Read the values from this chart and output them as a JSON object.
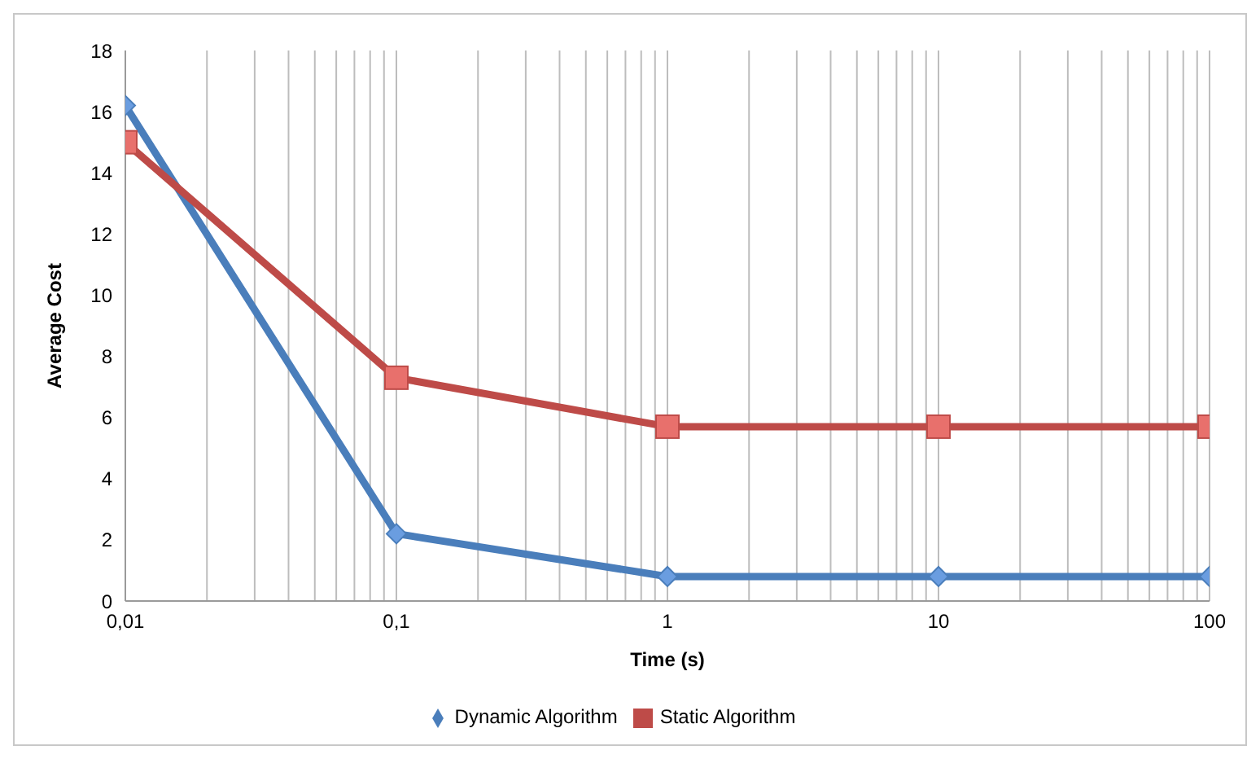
{
  "chart_data": {
    "type": "line",
    "xlabel": "Time (s)",
    "ylabel": "Average Cost",
    "log": "x",
    "x": [
      0.01,
      0.1,
      1,
      10,
      100
    ],
    "series": [
      {
        "name": "Dynamic Algorithm",
        "color": "#4a7ebb",
        "marker": "diamond",
        "values": [
          16.2,
          2.2,
          0.8,
          0.8,
          0.8
        ]
      },
      {
        "name": "Static Algorithm",
        "color": "#be4b48",
        "marker": "square",
        "values": [
          15,
          7.3,
          5.7,
          5.7,
          5.7
        ]
      }
    ],
    "xlim": [
      0.01,
      100
    ],
    "xticks": [
      {
        "value": 0.01,
        "label": "0,01"
      },
      {
        "value": 0.02,
        "label": null
      },
      {
        "value": 0.03,
        "label": null
      },
      {
        "value": 0.04,
        "label": null
      },
      {
        "value": 0.05,
        "label": null
      },
      {
        "value": 0.06,
        "label": null
      },
      {
        "value": 0.07,
        "label": null
      },
      {
        "value": 0.08,
        "label": null
      },
      {
        "value": 0.09,
        "label": null
      },
      {
        "value": 0.1,
        "label": "0,1"
      },
      {
        "value": 0.2,
        "label": null
      },
      {
        "value": 0.3,
        "label": null
      },
      {
        "value": 0.4,
        "label": null
      },
      {
        "value": 0.5,
        "label": null
      },
      {
        "value": 0.6,
        "label": null
      },
      {
        "value": 0.7,
        "label": null
      },
      {
        "value": 0.8,
        "label": null
      },
      {
        "value": 0.9,
        "label": null
      },
      1,
      {
        "value": 2,
        "label": null
      },
      {
        "value": 3,
        "label": null
      },
      {
        "value": 4,
        "label": null
      },
      {
        "value": 5,
        "label": null
      },
      {
        "value": 6,
        "label": null
      },
      {
        "value": 7,
        "label": null
      },
      {
        "value": 8,
        "label": null
      },
      {
        "value": 9,
        "label": null
      },
      10,
      {
        "value": 20,
        "label": null
      },
      {
        "value": 30,
        "label": null
      },
      {
        "value": 40,
        "label": null
      },
      {
        "value": 50,
        "label": null
      },
      {
        "value": 60,
        "label": null
      },
      {
        "value": 70,
        "label": null
      },
      {
        "value": 80,
        "label": null
      },
      {
        "value": 90,
        "label": null
      },
      100
    ],
    "ylim": [
      0,
      18
    ],
    "yticks": [
      0,
      2,
      4,
      6,
      8,
      10,
      12,
      14,
      16,
      18
    ],
    "grid": "x",
    "legend": "bottom",
    "line_style": "solid"
  }
}
